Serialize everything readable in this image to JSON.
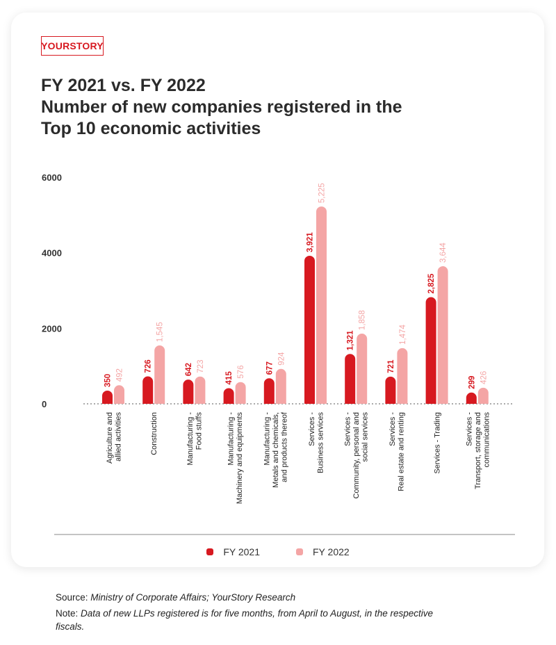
{
  "brand": {
    "logo_text": "YOURSTORY"
  },
  "title_lines": [
    "FY 2021 vs. FY 2022",
    "Number of new companies registered in the",
    "Top 10 economic activities"
  ],
  "colors": {
    "fy2021": "#d71920",
    "fy2022": "#f4a5a5",
    "brand": "#d71920"
  },
  "chart_data": {
    "type": "bar",
    "title": "FY 2021 vs. FY 2022 Number of new companies registered in the Top 10 economic activities",
    "categories": [
      [
        "Agriculture and",
        "allied activities"
      ],
      [
        "Construction"
      ],
      [
        "Manufacturing -",
        "Food stuffs"
      ],
      [
        "Manufacturing -",
        "Machinery and equipments"
      ],
      [
        "Manufacturing -",
        "Metals and chemicals,",
        "and products thereof"
      ],
      [
        "Services -",
        "Business services"
      ],
      [
        "Services -",
        "Community, personal and",
        "social services"
      ],
      [
        "Services -",
        "Real estate and renting"
      ],
      [
        "Services - Trading"
      ],
      [
        "Services -",
        "Transport, storage and",
        "communications"
      ]
    ],
    "series": [
      {
        "name": "FY 2021",
        "values": [
          350,
          726,
          642,
          415,
          677,
          3921,
          1321,
          721,
          2825,
          299
        ],
        "labels": [
          "350",
          "726",
          "642",
          "415",
          "677",
          "3,921",
          "1,321",
          "721",
          "2,825",
          "299"
        ]
      },
      {
        "name": "FY 2022",
        "values": [
          492,
          1545,
          723,
          576,
          924,
          5225,
          1858,
          1474,
          3644,
          426
        ],
        "labels": [
          "492",
          "1,545",
          "723",
          "576",
          "924",
          "5,225",
          "1,858",
          "1,474",
          "3,644",
          "426"
        ]
      }
    ],
    "yticks": [
      0,
      2000,
      4000,
      6000
    ],
    "ytick_labels": [
      "0",
      "2000",
      "4000",
      "6000"
    ],
    "ylim": [
      0,
      6000
    ],
    "legend": "bottom-center",
    "grid": false
  },
  "footer": {
    "source_prefix": "Source: ",
    "source_text": "Ministry of Corporate Affairs; YourStory Research",
    "note_prefix": "Note: ",
    "note_text": "Data of new LLPs registered is for five months, from April to August, in the respective fiscals."
  }
}
